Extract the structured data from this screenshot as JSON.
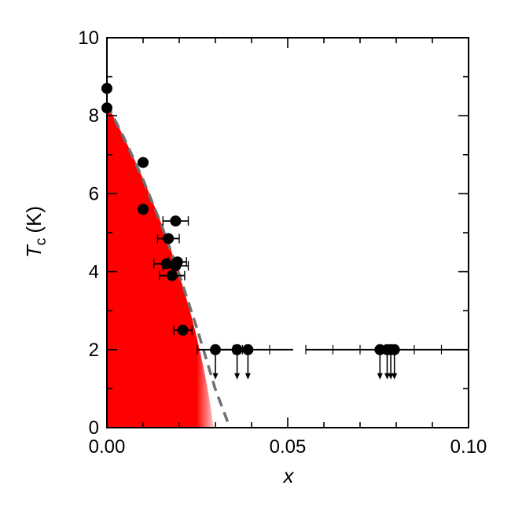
{
  "chart_data": {
    "type": "scatter",
    "title": "",
    "xlabel": "x",
    "ylabel": {
      "symbol": "T",
      "subscript": "c",
      "unit": "(K)"
    },
    "xlim": [
      0,
      0.1
    ],
    "ylim": [
      0,
      10
    ],
    "x_ticks": [
      {
        "value": 0,
        "label": "0.00"
      },
      {
        "value": 0.05,
        "label": "0.05"
      },
      {
        "value": 0.1,
        "label": "0.10"
      }
    ],
    "y_ticks": [
      {
        "value": 0,
        "label": "0"
      },
      {
        "value": 2,
        "label": "2"
      },
      {
        "value": 4,
        "label": "4"
      },
      {
        "value": 6,
        "label": "6"
      },
      {
        "value": 8,
        "label": "8"
      },
      {
        "value": 10,
        "label": "10"
      }
    ],
    "grid": false,
    "superconducting_region": {
      "color": "#ff0000",
      "tc_at_x0": 8.3,
      "x_edge_at_tc0": 0.0295
    },
    "dashed_boundary": {
      "color": "#707070",
      "x": [
        0,
        0.005,
        0.01,
        0.015,
        0.02,
        0.025,
        0.03,
        0.034
      ],
      "y": [
        8.3,
        7.38,
        6.36,
        5.22,
        3.93,
        2.52,
        0.98,
        0
      ]
    },
    "points": [
      {
        "x": 0.0,
        "y": 8.7
      },
      {
        "x": 0.0,
        "y": 8.2
      },
      {
        "x": 0.01,
        "y": 6.8
      },
      {
        "x": 0.01,
        "y": 5.6
      },
      {
        "x": 0.019,
        "y": 5.3,
        "xerr": 0.0035
      },
      {
        "x": 0.017,
        "y": 4.85,
        "xerr": 0.003
      },
      {
        "x": 0.0195,
        "y": 4.25,
        "xerr": 0.0025
      },
      {
        "x": 0.0165,
        "y": 4.2,
        "xerr": 0.0035
      },
      {
        "x": 0.019,
        "y": 4.15,
        "xerr": 0.0035
      },
      {
        "x": 0.018,
        "y": 3.9,
        "xerr": 0.0035
      },
      {
        "x": 0.021,
        "y": 2.5,
        "xerr": 0.0025
      },
      {
        "x": 0.03,
        "y": 2.0,
        "upper_limit": true,
        "xerr": 0.005
      },
      {
        "x": 0.036,
        "y": 2.0,
        "upper_limit": true
      },
      {
        "x": 0.039,
        "y": 2.0,
        "upper_limit": true
      },
      {
        "x": 0.0755,
        "y": 2.0,
        "upper_limit": true
      },
      {
        "x": 0.0775,
        "y": 2.0,
        "upper_limit": true
      },
      {
        "x": 0.0785,
        "y": 2.0,
        "upper_limit": true
      },
      {
        "x": 0.0795,
        "y": 2.0,
        "upper_limit": true
      }
    ],
    "long_error_bars": [
      {
        "y": 2.0,
        "x_start": 0.03,
        "x_end": 0.0515
      },
      {
        "y": 2.0,
        "x_start": 0.055,
        "x_end": 0.1
      }
    ],
    "colors": {
      "markers": "#000000",
      "dashed": "#707070",
      "region": "#ff0000"
    }
  }
}
